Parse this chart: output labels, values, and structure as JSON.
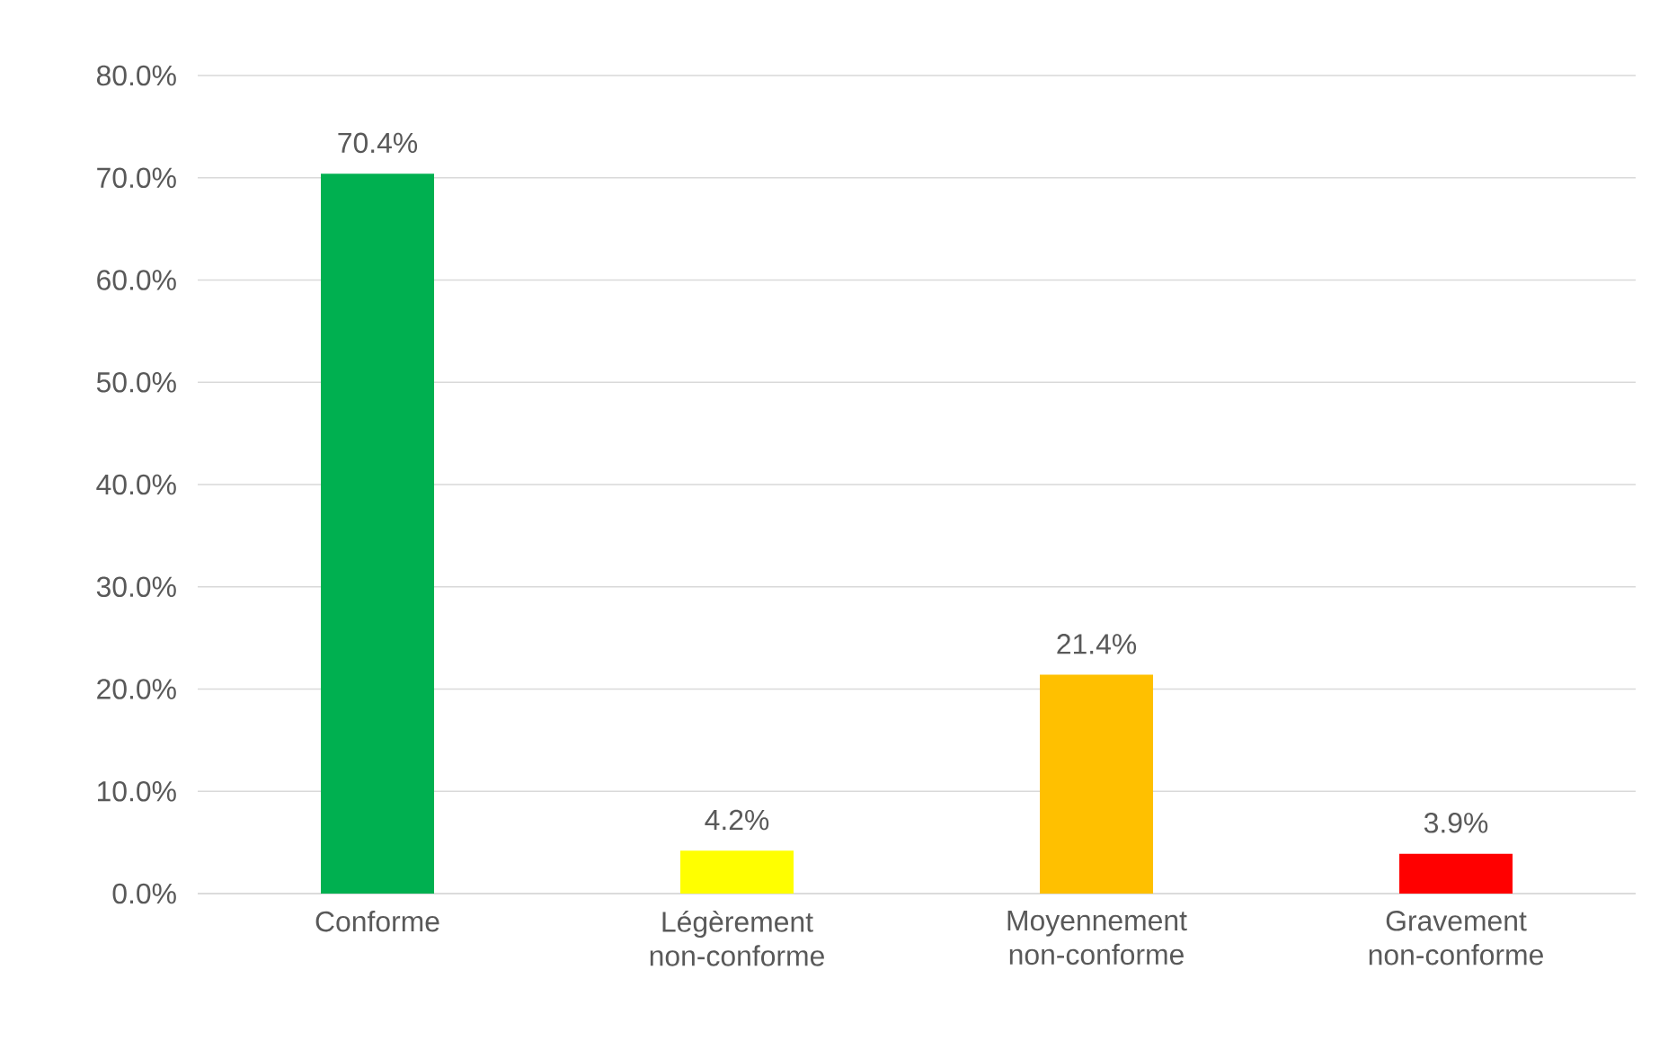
{
  "chart_data": {
    "type": "bar",
    "categories": [
      "Conforme",
      "Légèrement non-conforme",
      "Moyennement non-conforme",
      "Gravement non-conforme"
    ],
    "values": [
      70.4,
      4.2,
      21.4,
      3.9
    ],
    "colors": [
      "#00b050",
      "#ffff00",
      "#ffc000",
      "#ff0000"
    ],
    "value_labels": [
      "70.4%",
      "4.2%",
      "21.4%",
      "3.9%"
    ],
    "ylim": [
      0,
      80
    ],
    "yticks": [
      {
        "value": 0,
        "label": "0.0%"
      },
      {
        "value": 10,
        "label": "10.0%"
      },
      {
        "value": 20,
        "label": "20.0%"
      },
      {
        "value": 30,
        "label": "30.0%"
      },
      {
        "value": 40,
        "label": "40.0%"
      },
      {
        "value": 50,
        "label": "50.0%"
      },
      {
        "value": 60,
        "label": "60.0%"
      },
      {
        "value": 70,
        "label": "70.0%"
      },
      {
        "value": 80,
        "label": "80.0%"
      }
    ],
    "grid": "y"
  }
}
